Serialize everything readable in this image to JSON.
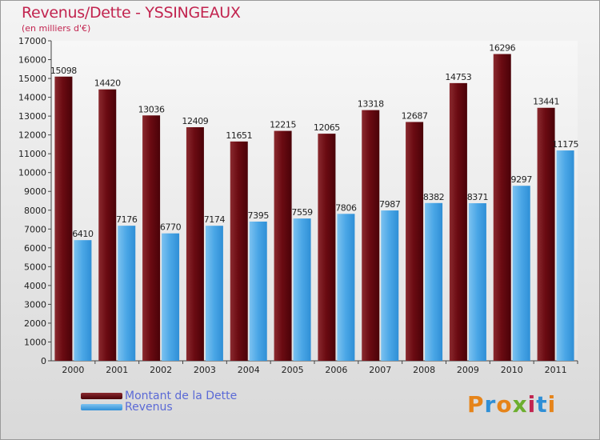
{
  "title": "Revenus/Dette - YSSINGEAUX",
  "subtitle": "(en milliers d'€)",
  "legend": {
    "dette": "Montant de la Dette",
    "revenus": "Revenus"
  },
  "logo": {
    "text": "Proxiti"
  },
  "colors": {
    "dette": "#6b0b12",
    "revenus": "#4aa6e6",
    "title": "#c2244f",
    "legend_text": "#5b6ad6"
  },
  "chart_data": {
    "type": "bar",
    "categories": [
      "2000",
      "2001",
      "2002",
      "2003",
      "2004",
      "2005",
      "2006",
      "2007",
      "2008",
      "2009",
      "2010",
      "2011"
    ],
    "series": [
      {
        "name": "Montant de la Dette",
        "values": [
          15098,
          14420,
          13036,
          12409,
          11651,
          12215,
          12065,
          13318,
          12687,
          14753,
          16296,
          13441
        ]
      },
      {
        "name": "Revenus",
        "values": [
          6410,
          7176,
          6770,
          7174,
          7395,
          7559,
          7806,
          7987,
          8382,
          8371,
          9297,
          11175
        ]
      }
    ],
    "yticks": [
      0,
      1000,
      2000,
      3000,
      4000,
      5000,
      6000,
      7000,
      8000,
      9000,
      10000,
      11000,
      12000,
      13000,
      14000,
      15000,
      16000,
      17000
    ],
    "ylim": [
      0,
      17000
    ],
    "grid": false,
    "legend_position": "bottom-left"
  }
}
